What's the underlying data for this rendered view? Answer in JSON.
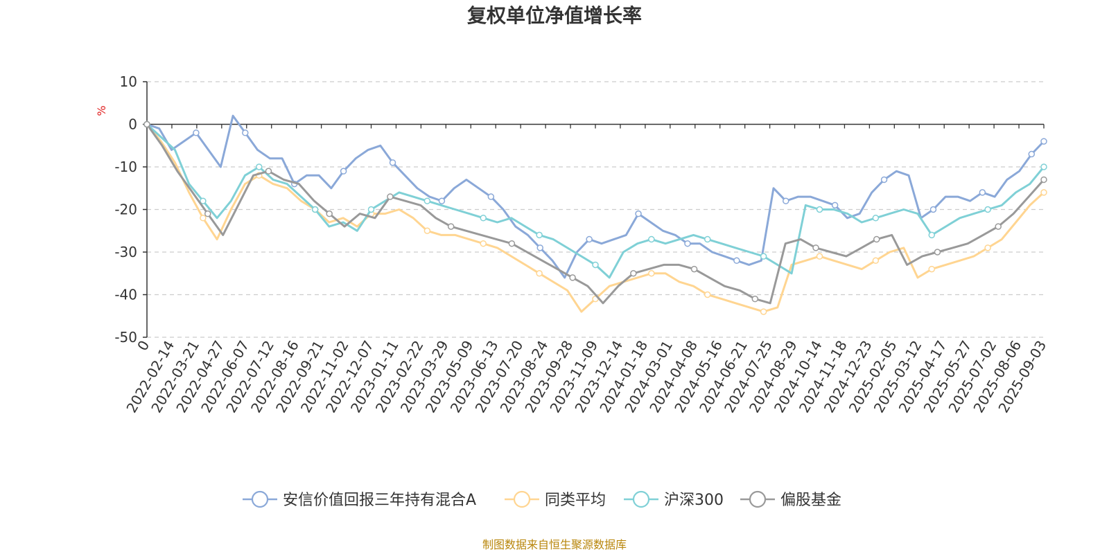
{
  "chart_data": {
    "type": "line",
    "title": "复权单位净值增长率",
    "unit_label": "%",
    "y_ticks": [
      "10",
      "0",
      "-10",
      "-20",
      "-30",
      "-40",
      "-50"
    ],
    "ylim": [
      -50,
      10
    ],
    "grid": true,
    "legend_position": "bottom",
    "x_labels": [
      "0",
      "2022-02-14",
      "2022-03-21",
      "2022-04-27",
      "2022-06-07",
      "2022-07-12",
      "2022-08-16",
      "2022-09-21",
      "2022-11-02",
      "2022-12-07",
      "2023-01-11",
      "2023-02-22",
      "2023-03-29",
      "2023-05-09",
      "2023-06-13",
      "2023-07-20",
      "2023-08-24",
      "2023-09-28",
      "2023-11-09",
      "2023-12-14",
      "2024-01-18",
      "2024-03-01",
      "2024-04-08",
      "2024-05-16",
      "2024-06-21",
      "2024-07-25",
      "2024-08-29",
      "2024-10-14",
      "2024-11-18",
      "2024-12-23",
      "2025-02-05",
      "2025-03-12",
      "2025-04-17",
      "2025-05-27",
      "2025-07-02",
      "2025-08-06",
      "2025-09-03"
    ],
    "series": [
      {
        "name": "安信价值回报三年持有混合A",
        "color": "#8aa8d8",
        "values": [
          0,
          -1,
          -6,
          -4,
          -2,
          -6,
          -10,
          2,
          -2,
          -6,
          -8,
          -8,
          -14,
          -12,
          -12,
          -15,
          -11,
          -8,
          -6,
          -5,
          -9,
          -12,
          -15,
          -17,
          -18,
          -15,
          -13,
          -15,
          -17,
          -20,
          -24,
          -26,
          -29,
          -32,
          -36,
          -30,
          -27,
          -28,
          -27,
          -26,
          -21,
          -23,
          -25,
          -26,
          -28,
          -28,
          -30,
          -31,
          -32,
          -33,
          -32,
          -15,
          -18,
          -17,
          -17,
          -18,
          -19,
          -22,
          -21,
          -16,
          -13,
          -11,
          -12,
          -22,
          -20,
          -17,
          -17,
          -18,
          -16,
          -17,
          -13,
          -11,
          -7,
          -4
        ]
      },
      {
        "name": "同类平均",
        "color": "#ffd591",
        "values": [
          0,
          -4,
          -9,
          -16,
          -22,
          -27,
          -20,
          -14,
          -12,
          -14,
          -15,
          -18,
          -20,
          -23,
          -22,
          -24,
          -21,
          -21,
          -20,
          -22,
          -25,
          -26,
          -26,
          -27,
          -28,
          -29,
          -31,
          -33,
          -35,
          -37,
          -39,
          -44,
          -41,
          -38,
          -37,
          -36,
          -35,
          -35,
          -37,
          -38,
          -40,
          -41,
          -42,
          -43,
          -44,
          -43,
          -33,
          -32,
          -31,
          -32,
          -33,
          -34,
          -32,
          -30,
          -29,
          -36,
          -34,
          -33,
          -32,
          -31,
          -29,
          -27,
          -23,
          -19,
          -16
        ]
      },
      {
        "name": "沪深300",
        "color": "#7fd0d6",
        "values": [
          0,
          -3,
          -6,
          -14,
          -18,
          -22,
          -18,
          -12,
          -10,
          -13,
          -14,
          -17,
          -20,
          -24,
          -23,
          -25,
          -20,
          -18,
          -16,
          -17,
          -18,
          -19,
          -20,
          -21,
          -22,
          -23,
          -22,
          -24,
          -26,
          -27,
          -29,
          -31,
          -33,
          -36,
          -30,
          -28,
          -27,
          -28,
          -27,
          -26,
          -27,
          -28,
          -29,
          -30,
          -31,
          -33,
          -35,
          -19,
          -20,
          -20,
          -21,
          -23,
          -22,
          -21,
          -20,
          -21,
          -26,
          -24,
          -22,
          -21,
          -20,
          -19,
          -16,
          -14,
          -10
        ]
      },
      {
        "name": "偏股基金",
        "color": "#999999",
        "values": [
          0,
          -5,
          -11,
          -16,
          -21,
          -26,
          -19,
          -12,
          -11,
          -13,
          -14,
          -18,
          -21,
          -24,
          -21,
          -22,
          -17,
          -18,
          -19,
          -22,
          -24,
          -25,
          -26,
          -27,
          -28,
          -30,
          -32,
          -34,
          -36,
          -38,
          -42,
          -38,
          -35,
          -34,
          -33,
          -33,
          -34,
          -36,
          -38,
          -39,
          -41,
          -42,
          -28,
          -27,
          -29,
          -30,
          -31,
          -29,
          -27,
          -26,
          -33,
          -31,
          -30,
          -29,
          -28,
          -26,
          -24,
          -21,
          -17,
          -13
        ]
      }
    ]
  },
  "footer": {
    "source": "制图数据来自恒生聚源数据库"
  }
}
